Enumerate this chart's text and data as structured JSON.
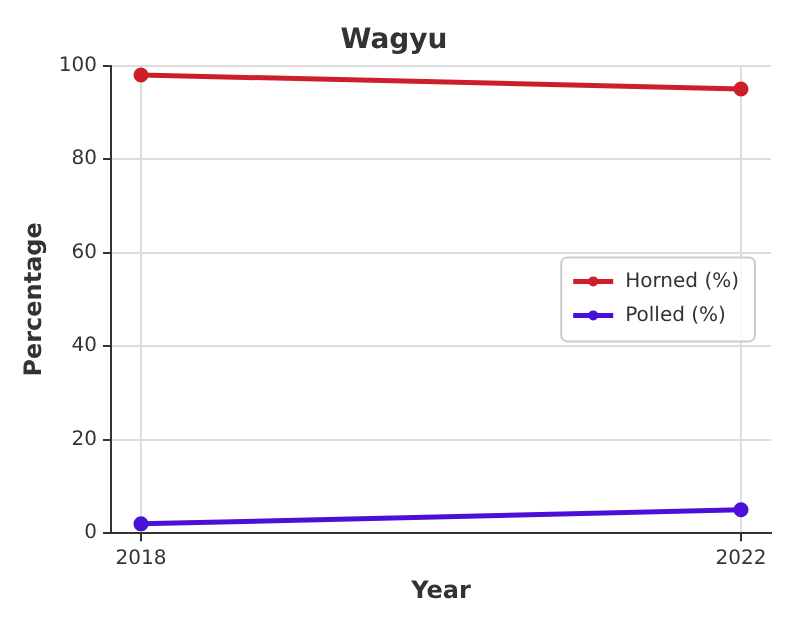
{
  "chart_data": {
    "type": "line",
    "title": "Wagyu",
    "xlabel": "Year",
    "ylabel": "Percentage",
    "x": [
      2018,
      2022
    ],
    "series": [
      {
        "name": "Horned (%)",
        "color": "#cc1f2a",
        "values": [
          98,
          95
        ]
      },
      {
        "name": "Polled (%)",
        "color": "#4a0fd9",
        "values": [
          2,
          5
        ]
      }
    ],
    "xlim": [
      2017.8,
      2022.2
    ],
    "xticks": [
      2018,
      2022
    ],
    "ylim": [
      0,
      100
    ],
    "yticks": [
      0,
      20,
      40,
      60,
      80,
      100
    ],
    "grid": true,
    "legend": "right",
    "marker": "circle",
    "line_style": "solid"
  }
}
